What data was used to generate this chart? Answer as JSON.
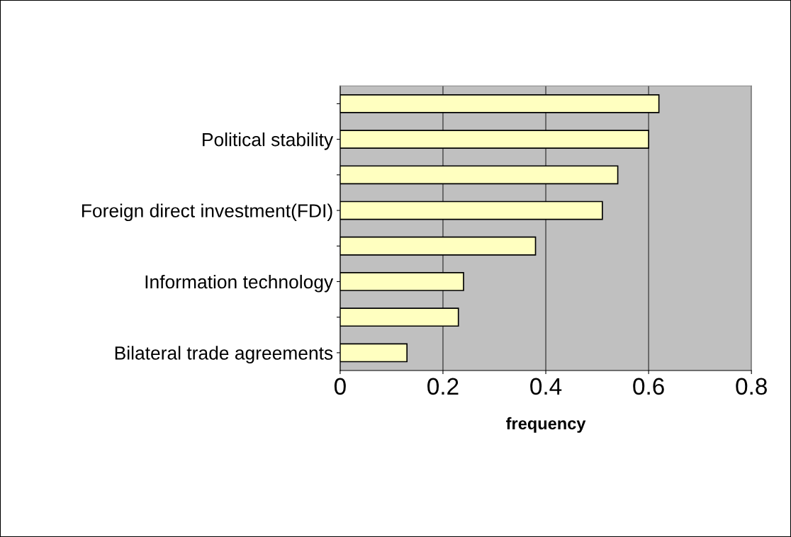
{
  "chart_data": {
    "type": "bar",
    "orientation": "horizontal",
    "xlabel": "frequency",
    "categories": [
      null,
      "Political stability",
      null,
      "Foreign direct investment(FDI)",
      null,
      "Information technology",
      null,
      "Bilateral trade agreements"
    ],
    "values": [
      0.62,
      0.6,
      0.54,
      0.51,
      0.38,
      0.24,
      0.23,
      0.13
    ],
    "color": "#ffffc0",
    "xlim": [
      0,
      0.8
    ],
    "xticks": [
      0,
      0.2,
      0.4,
      0.6,
      0.8
    ],
    "grid": "x"
  }
}
